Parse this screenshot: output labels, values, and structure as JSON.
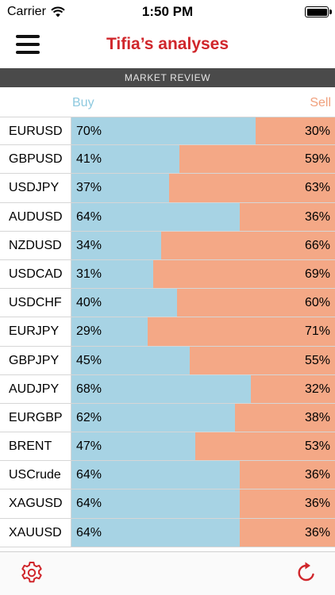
{
  "status_bar": {
    "carrier": "Carrier",
    "time": "1:50 PM"
  },
  "nav": {
    "title": "Tifia’s analyses",
    "menu_icon": "hamburger-menu-icon"
  },
  "section": {
    "title": "MARKET REVIEW"
  },
  "columns": {
    "buy": "Buy",
    "sell": "Sell"
  },
  "colors": {
    "buy": "#a7d3e4",
    "sell": "#f4a886",
    "title": "#d0262b",
    "icons": "#d0262b"
  },
  "rows": [
    {
      "symbol": "EURUSD",
      "buy_pct": 70,
      "buy": "70%",
      "sell": "30%"
    },
    {
      "symbol": "GBPUSD",
      "buy_pct": 41,
      "buy": "41%",
      "sell": "59%"
    },
    {
      "symbol": "USDJPY",
      "buy_pct": 37,
      "buy": "37%",
      "sell": "63%"
    },
    {
      "symbol": "AUDUSD",
      "buy_pct": 64,
      "buy": "64%",
      "sell": "36%"
    },
    {
      "symbol": "NZDUSD",
      "buy_pct": 34,
      "buy": "34%",
      "sell": "66%"
    },
    {
      "symbol": "USDCAD",
      "buy_pct": 31,
      "buy": "31%",
      "sell": "69%"
    },
    {
      "symbol": "USDCHF",
      "buy_pct": 40,
      "buy": "40%",
      "sell": "60%"
    },
    {
      "symbol": "EURJPY",
      "buy_pct": 29,
      "buy": "29%",
      "sell": "71%"
    },
    {
      "symbol": "GBPJPY",
      "buy_pct": 45,
      "buy": "45%",
      "sell": "55%"
    },
    {
      "symbol": "AUDJPY",
      "buy_pct": 68,
      "buy": "68%",
      "sell": "32%"
    },
    {
      "symbol": "EURGBP",
      "buy_pct": 62,
      "buy": "62%",
      "sell": "38%"
    },
    {
      "symbol": "BRENT",
      "buy_pct": 47,
      "buy": "47%",
      "sell": "53%"
    },
    {
      "symbol": "USCrude",
      "buy_pct": 64,
      "buy": "64%",
      "sell": "36%"
    },
    {
      "symbol": "XAGUSD",
      "buy_pct": 64,
      "buy": "64%",
      "sell": "36%"
    },
    {
      "symbol": "XAUUSD",
      "buy_pct": 64,
      "buy": "64%",
      "sell": "36%"
    }
  ],
  "toolbar": {
    "settings_icon": "gear-icon",
    "refresh_icon": "refresh-icon"
  }
}
